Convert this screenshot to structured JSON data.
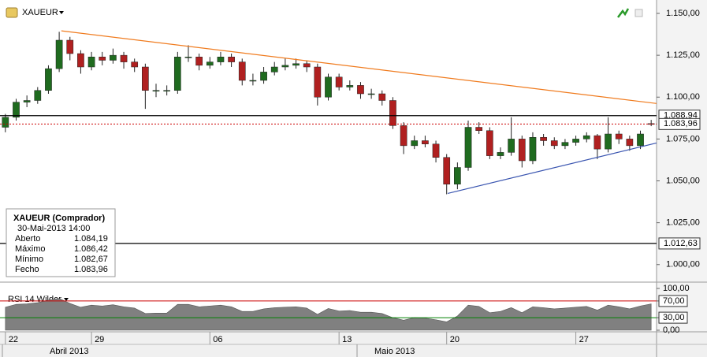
{
  "chart_data": {
    "type": "candlestick",
    "title": "XAUEUR",
    "categories": [
      "22",
      null,
      null,
      null,
      null,
      null,
      null,
      null,
      "29",
      null,
      null,
      null,
      null,
      null,
      null,
      null,
      null,
      null,
      null,
      "06",
      null,
      null,
      null,
      null,
      null,
      null,
      null,
      null,
      null,
      null,
      null,
      "13",
      null,
      null,
      null,
      null,
      null,
      null,
      null,
      null,
      null,
      "20",
      null,
      null,
      null,
      null,
      null,
      null,
      null,
      null,
      null,
      null,
      null,
      "27",
      null,
      null,
      null,
      null,
      null,
      null,
      null
    ],
    "months": [
      "Abril 2013",
      "Maio 2013"
    ],
    "open": [
      1082,
      1088,
      1097,
      1098,
      1104,
      1117,
      1134,
      1126,
      1118,
      1124,
      1122,
      1125,
      1121,
      1118,
      1104,
      1104,
      1104,
      1124,
      1124,
      1119,
      1121,
      1124,
      1121,
      1110,
      1110,
      1115,
      1118,
      1119,
      1120,
      1118,
      1100,
      1112,
      1106,
      1107,
      1102,
      1102,
      1098,
      1083,
      1071,
      1074,
      1072,
      1064,
      1048,
      1058,
      1082,
      1080,
      1065,
      1067,
      1075,
      1062,
      1076,
      1074,
      1071,
      1073,
      1075,
      1077,
      1069,
      1078,
      1075,
      1071,
      1084.19
    ],
    "high": [
      1090,
      1099,
      1101,
      1106,
      1119,
      1139,
      1136,
      1128,
      1127,
      1127,
      1129,
      1127,
      1123,
      1120,
      1108,
      1107,
      1127,
      1131,
      1126,
      1124,
      1127,
      1126,
      1123,
      1114,
      1118,
      1121,
      1123,
      1123,
      1122,
      1120,
      1114,
      1114,
      1110,
      1109,
      1105,
      1104,
      1100,
      1085,
      1077,
      1077,
      1074,
      1066,
      1061,
      1086,
      1085,
      1082,
      1070,
      1088,
      1077,
      1079,
      1078,
      1076,
      1075,
      1077,
      1079,
      1078,
      1088,
      1080,
      1077,
      1080,
      1086.42
    ],
    "low": [
      1079,
      1086,
      1094,
      1096,
      1102,
      1115,
      1122,
      1114,
      1116,
      1119,
      1120,
      1117,
      1115,
      1093,
      1100,
      1101,
      1102,
      1121,
      1116,
      1117,
      1119,
      1118,
      1107,
      1107,
      1108,
      1113,
      1116,
      1117,
      1115,
      1095,
      1098,
      1104,
      1104,
      1099,
      1099,
      1095,
      1081,
      1066,
      1069,
      1070,
      1061,
      1042,
      1045,
      1056,
      1078,
      1063,
      1063,
      1065,
      1058,
      1060,
      1071,
      1069,
      1069,
      1071,
      1073,
      1063,
      1067,
      1072,
      1068,
      1069,
      1082.67
    ],
    "close": [
      1088,
      1097,
      1098,
      1104,
      1117,
      1134,
      1126,
      1118,
      1124,
      1122,
      1125,
      1121,
      1118,
      1104,
      1104,
      1104,
      1124,
      1124,
      1119,
      1121,
      1124,
      1121,
      1110,
      1110,
      1115,
      1118,
      1119,
      1120,
      1118,
      1100,
      1112,
      1106,
      1107,
      1102,
      1102,
      1098,
      1083,
      1071,
      1074,
      1072,
      1064,
      1048,
      1058,
      1082,
      1080,
      1065,
      1067,
      1075,
      1062,
      1076,
      1074,
      1071,
      1073,
      1075,
      1077,
      1069,
      1078,
      1075,
      1071,
      1078,
      1083.96
    ],
    "up_color": "#1f6b1f",
    "down_color": "#b02020",
    "ylim": [
      990,
      1158
    ],
    "yticks": [
      {
        "value": 1000,
        "label": "1.000,00"
      },
      {
        "value": 1025,
        "label": "1.025,00"
      },
      {
        "value": 1050,
        "label": "1.050,00"
      },
      {
        "value": 1075,
        "label": "1.075,00"
      },
      {
        "value": 1100,
        "label": "1.100,00"
      },
      {
        "value": 1125,
        "label": "1.125,00"
      },
      {
        "value": 1150,
        "label": "1.150,00"
      }
    ],
    "levels": [
      {
        "value": 1088.94,
        "label": "1.088,94",
        "color": "#000000",
        "dotted": false
      },
      {
        "value": 1083.96,
        "label": "1.083,96",
        "color": "#cc0000",
        "dotted": true
      },
      {
        "value": 1012.63,
        "label": "1.012,63",
        "color": "#000000",
        "dotted": false
      }
    ],
    "trendlines": [
      {
        "color": "#f07b1e",
        "x": [
          5.2,
          60.5
        ],
        "y": [
          1139.6,
          1096.2
        ]
      },
      {
        "color": "#3a55b0",
        "x": [
          41.1,
          60.5
        ],
        "y": [
          1042.5,
          1072.6
        ]
      }
    ],
    "info": {
      "title": "XAUEUR (Comprador)",
      "date": "30-Mai-2013 14:00",
      "labels": [
        "Aberto",
        "Máximo",
        "Mínimo",
        "Fecho"
      ],
      "values": [
        "1.084,19",
        "1.086,42",
        "1.082,67",
        "1.083,96"
      ]
    },
    "rsi": {
      "name": "RSI 14 Wilder",
      "color": "#808080",
      "values": [
        55,
        62,
        63,
        66,
        72,
        76,
        64,
        55,
        60,
        58,
        61,
        56,
        53,
        40,
        41,
        41,
        62,
        62,
        56,
        58,
        60,
        56,
        45,
        45,
        51,
        54,
        55,
        56,
        53,
        38,
        52,
        46,
        47,
        43,
        43,
        40,
        30,
        24,
        30,
        29,
        25,
        20,
        34,
        60,
        57,
        42,
        45,
        54,
        42,
        56,
        54,
        51,
        53,
        55,
        57,
        48,
        60,
        56,
        51,
        58,
        63
      ],
      "ylim": [
        0,
        100
      ],
      "yticks": [
        {
          "value": 0,
          "label": "0,00"
        },
        {
          "value": 30,
          "label": "30,00"
        },
        {
          "value": 70,
          "label": "70,00"
        },
        {
          "value": 100,
          "label": "100,00"
        }
      ],
      "levels": [
        {
          "value": 70,
          "color": "#cc0000"
        },
        {
          "value": 30,
          "color": "#008000"
        }
      ]
    }
  }
}
